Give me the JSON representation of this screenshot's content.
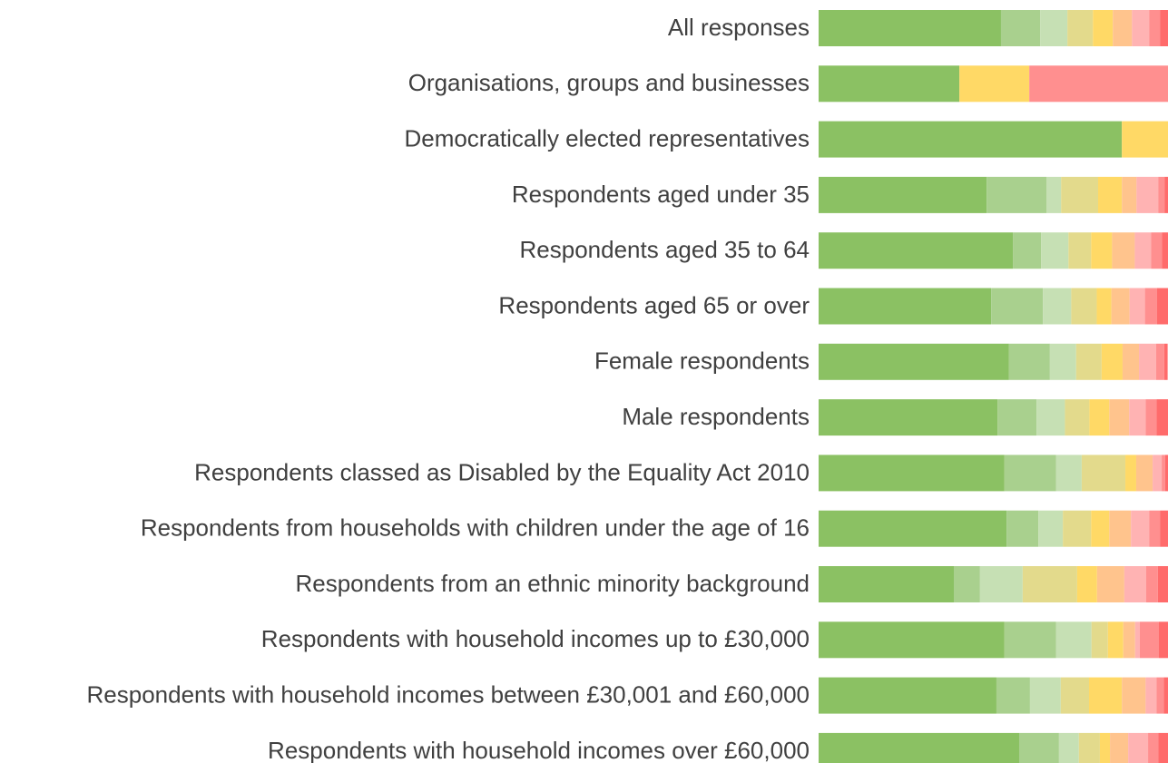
{
  "chart_data": {
    "type": "stacked_bar_horizontal",
    "categories": [
      "All responses",
      "Organisations, groups and businesses",
      "Democratically elected representatives",
      "Respondents aged under 35",
      "Respondents aged 35 to 64",
      "Respondents aged 65 or over",
      "Female respondents",
      "Male respondents",
      "Respondents classed as Disabled by the Equality Act 2010",
      "Respondents from households with children under the age of 16",
      "Respondents from an ethnic minority background",
      "Respondents with household incomes up to £30,000",
      "Respondents with household incomes between £30,001 and £60,000",
      "Respondents with household incomes over £60,000"
    ],
    "xlim": [
      0,
      100
    ],
    "series": [
      {
        "color": "#8bc163",
        "values": [
          52.2,
          40.3,
          86.8,
          48.1,
          55.6,
          49.4,
          54.5,
          51.2,
          53.2,
          53.8,
          38.7,
          53.2,
          50.9,
          57.4
        ]
      },
      {
        "color": "#a9d08e",
        "values": [
          11.2,
          0,
          0,
          17.1,
          8.1,
          14.8,
          11.7,
          11.2,
          14.8,
          9.1,
          7.5,
          14.8,
          9.6,
          11.4
        ]
      },
      {
        "color": "#c6e0b4",
        "values": [
          7.8,
          0,
          0,
          4.2,
          7.8,
          8.1,
          7.5,
          8.1,
          7.3,
          7.0,
          12.2,
          10.1,
          8.8,
          5.7
        ]
      },
      {
        "color": "#e3da8c",
        "values": [
          7.3,
          0,
          0,
          10.6,
          6.5,
          7.3,
          7.3,
          7.0,
          12.5,
          8.1,
          15.6,
          4.7,
          8.1,
          6.0
        ]
      },
      {
        "color": "#ffd966",
        "values": [
          5.7,
          20.0,
          13.2,
          6.8,
          6.0,
          4.2,
          6.0,
          5.7,
          3.1,
          5.2,
          5.7,
          4.4,
          9.4,
          2.9
        ]
      },
      {
        "color": "#ffc48d",
        "values": [
          5.5,
          0,
          0,
          4.2,
          6.5,
          5.2,
          4.7,
          5.7,
          4.7,
          6.2,
          7.8,
          3.4,
          6.8,
          5.2
        ]
      },
      {
        "color": "#ffb3b3",
        "values": [
          4.9,
          0,
          0,
          6.2,
          4.7,
          4.4,
          4.9,
          4.7,
          2.6,
          5.2,
          6.2,
          1.3,
          3.1,
          5.7
        ]
      },
      {
        "color": "#ff8f8f",
        "values": [
          3.1,
          39.7,
          0,
          1.8,
          3.1,
          3.4,
          2.3,
          3.1,
          1.0,
          3.1,
          3.4,
          5.5,
          2.1,
          2.9
        ]
      },
      {
        "color": "#ff6b6b",
        "values": [
          2.3,
          0,
          0,
          1.0,
          1.8,
          3.2,
          1.0,
          3.4,
          0.8,
          2.3,
          2.9,
          2.6,
          1.3,
          2.9
        ]
      }
    ]
  }
}
